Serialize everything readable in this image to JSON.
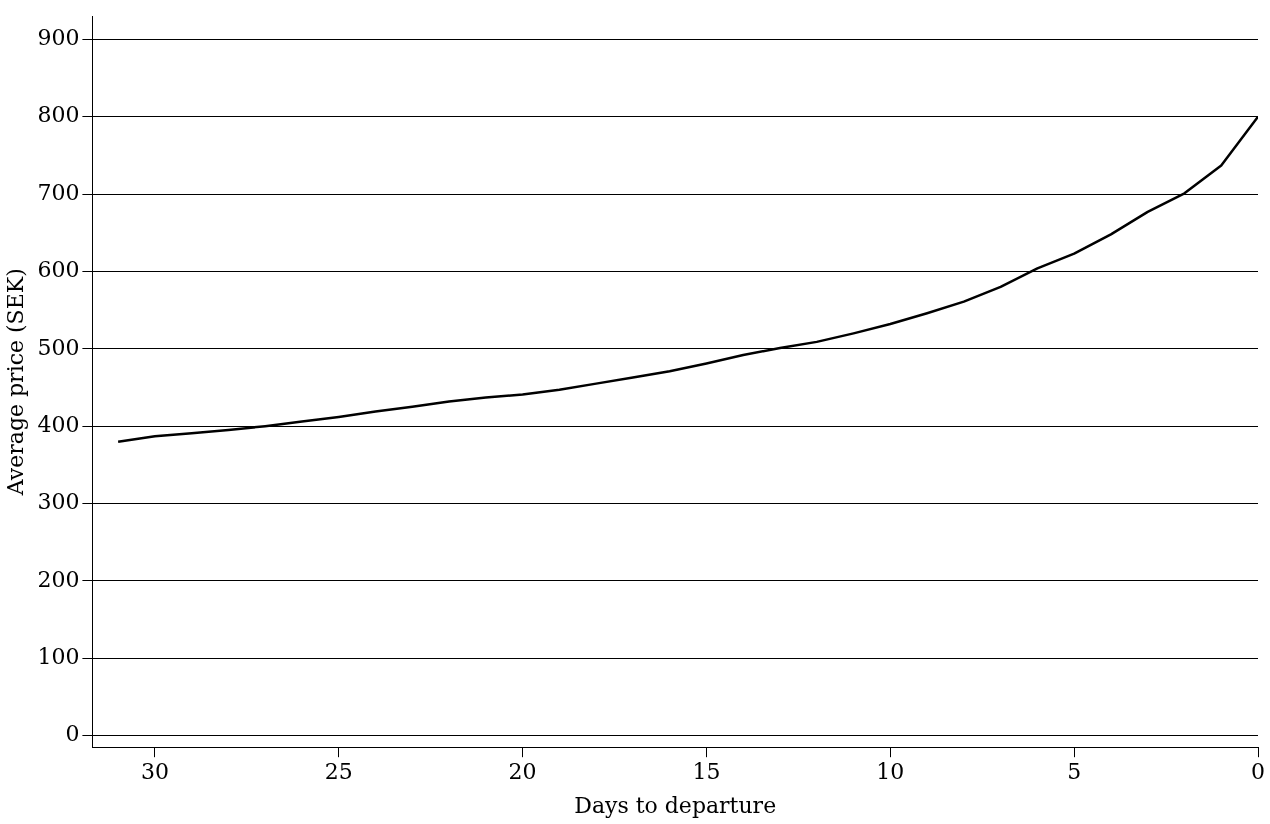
{
  "chart_data": {
    "type": "line",
    "xlabel": "Days to departure",
    "ylabel": "Average price (SEK)",
    "x": [
      31,
      30,
      29,
      28,
      27,
      26,
      25,
      24,
      23,
      22,
      21,
      20,
      19,
      18,
      17,
      16,
      15,
      14,
      13,
      12,
      11,
      10,
      9,
      8,
      7,
      6,
      5,
      4,
      3,
      2,
      1,
      0
    ],
    "series": [
      {
        "color": "#000000",
        "values": [
          380,
          387,
          391,
          395,
          400,
          406,
          412,
          419,
          425,
          432,
          437,
          441,
          447,
          455,
          463,
          471,
          481,
          492,
          501,
          509,
          520,
          532,
          546,
          561,
          580,
          604,
          623,
          648,
          677,
          701,
          737,
          800
        ]
      }
    ],
    "xlim": [
      31.7,
      0
    ],
    "xticks": [
      30,
      25,
      20,
      15,
      10,
      5,
      0
    ],
    "ylim": [
      -15,
      930
    ],
    "yticks": [
      0,
      100,
      200,
      300,
      400,
      500,
      600,
      700,
      800,
      900
    ],
    "grid": "y",
    "legend": false,
    "marker": "none",
    "line_style": "solid"
  }
}
